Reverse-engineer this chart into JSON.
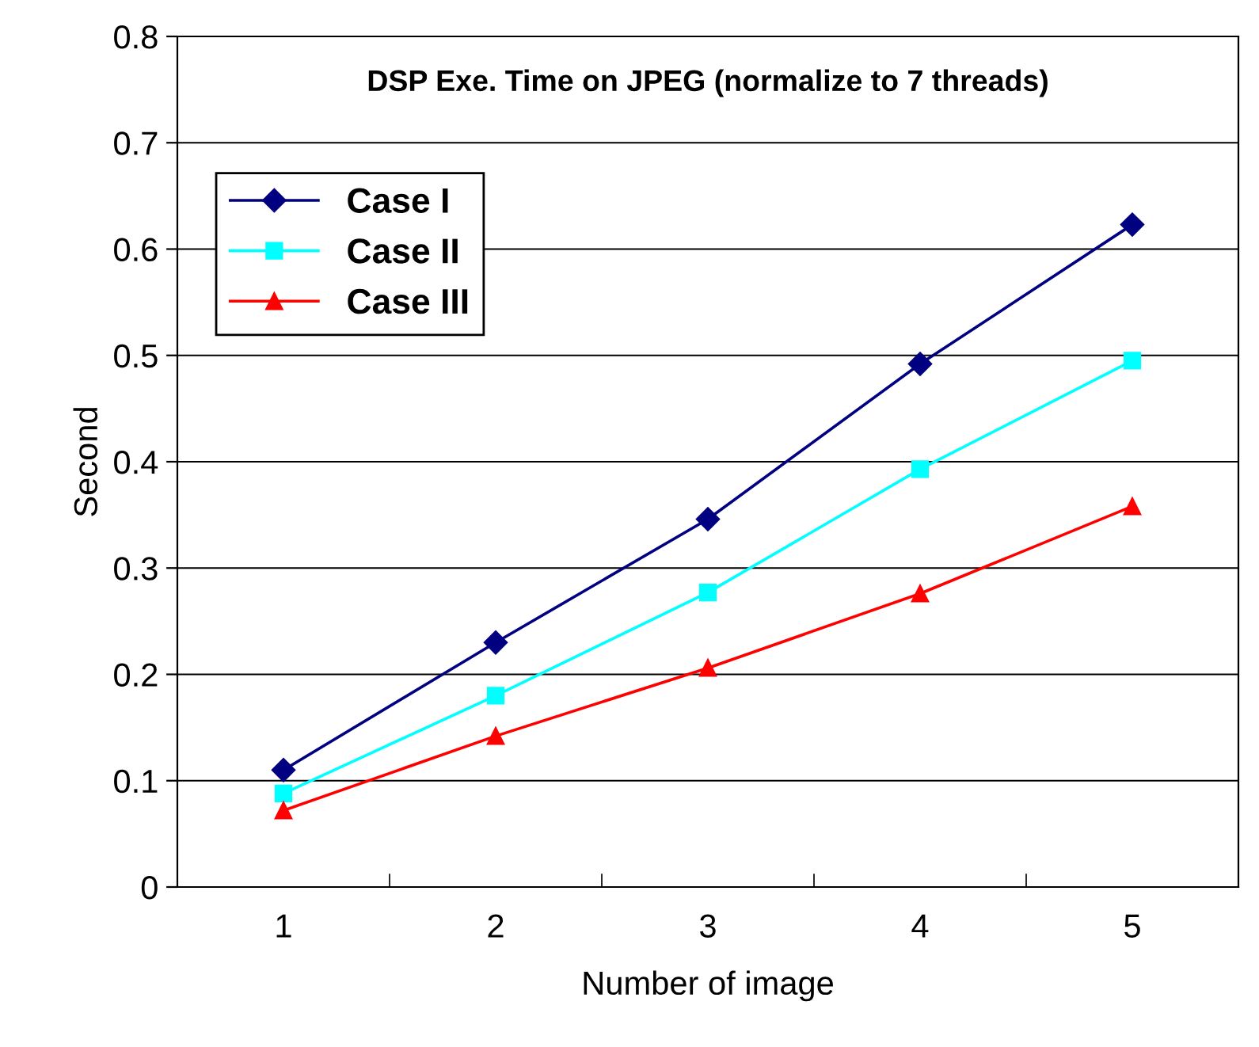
{
  "chart_data": {
    "type": "line",
    "title": "DSP Exe. Time on JPEG (normalize to 7 threads)",
    "xlabel": "Number of image",
    "ylabel": "Second",
    "categories": [
      "1",
      "2",
      "3",
      "4",
      "5"
    ],
    "series": [
      {
        "name": "Case I",
        "color": "#000080",
        "marker": "diamond",
        "values": [
          0.11,
          0.23,
          0.346,
          0.492,
          0.623
        ]
      },
      {
        "name": "Case II",
        "color": "#00ffff",
        "marker": "square",
        "values": [
          0.088,
          0.18,
          0.277,
          0.393,
          0.495
        ]
      },
      {
        "name": "Case III",
        "color": "#ff0000",
        "marker": "triangle",
        "values": [
          0.072,
          0.142,
          0.206,
          0.276,
          0.358
        ]
      }
    ],
    "ylim": [
      0,
      0.8
    ],
    "yticks": [
      0,
      0.1,
      0.2,
      0.3,
      0.4,
      0.5,
      0.6,
      0.7,
      0.8
    ],
    "grid": "y",
    "legend": "top left",
    "line_style": "solid"
  }
}
